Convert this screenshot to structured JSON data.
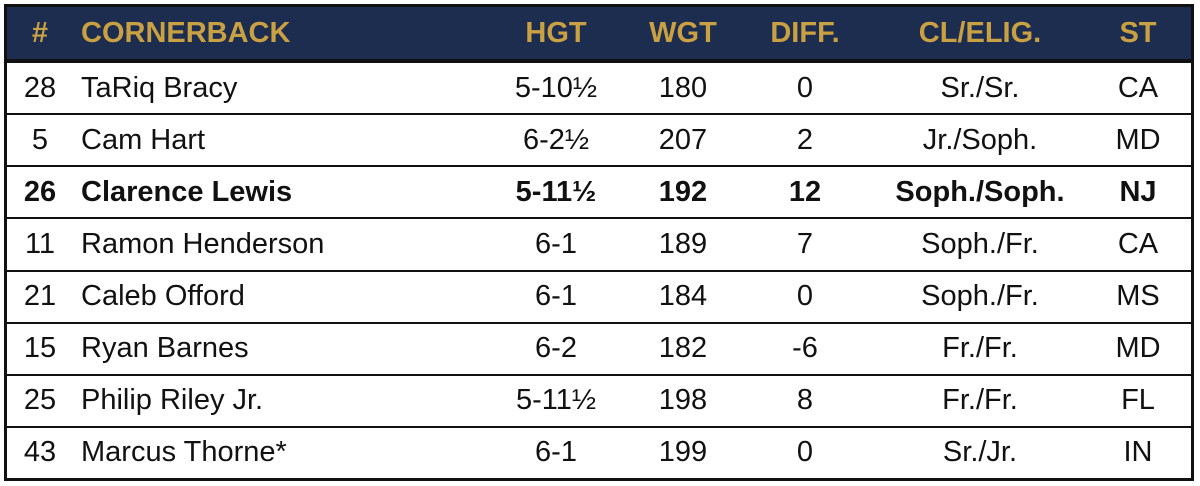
{
  "header": {
    "num": "#",
    "position": "CORNERBACK",
    "hgt": "HGT",
    "wgt": "WGT",
    "diff": "DIFF.",
    "cl_elig": "CL/ELIG.",
    "st": "ST"
  },
  "colors": {
    "header_background": "#1d2d4f",
    "header_text": "#c9a042",
    "border": "#111111"
  },
  "rows": [
    {
      "num": "28",
      "name": "TaRiq Bracy",
      "hgt": "5-10½",
      "wgt": "180",
      "diff": "0",
      "cl_elig": "Sr./Sr.",
      "st": "CA",
      "bold": false
    },
    {
      "num": "5",
      "name": "Cam Hart",
      "hgt": "6-2½",
      "wgt": "207",
      "diff": "2",
      "cl_elig": "Jr./Soph.",
      "st": "MD",
      "bold": false
    },
    {
      "num": "26",
      "name": "Clarence Lewis",
      "hgt": "5-11½",
      "wgt": "192",
      "diff": "12",
      "cl_elig": "Soph./Soph.",
      "st": "NJ",
      "bold": true
    },
    {
      "num": "11",
      "name": "Ramon Henderson",
      "hgt": "6-1",
      "wgt": "189",
      "diff": "7",
      "cl_elig": "Soph./Fr.",
      "st": "CA",
      "bold": false
    },
    {
      "num": "21",
      "name": "Caleb Offord",
      "hgt": "6-1",
      "wgt": "184",
      "diff": "0",
      "cl_elig": "Soph./Fr.",
      "st": "MS",
      "bold": false
    },
    {
      "num": "15",
      "name": "Ryan Barnes",
      "hgt": "6-2",
      "wgt": "182",
      "diff": "-6",
      "cl_elig": "Fr./Fr.",
      "st": "MD",
      "bold": false
    },
    {
      "num": "25",
      "name": "Philip Riley Jr.",
      "hgt": "5-11½",
      "wgt": "198",
      "diff": "8",
      "cl_elig": "Fr./Fr.",
      "st": "FL",
      "bold": false
    },
    {
      "num": "43",
      "name": "Marcus Thorne*",
      "hgt": "6-1",
      "wgt": "199",
      "diff": "0",
      "cl_elig": "Sr./Jr.",
      "st": "IN",
      "bold": false
    }
  ]
}
